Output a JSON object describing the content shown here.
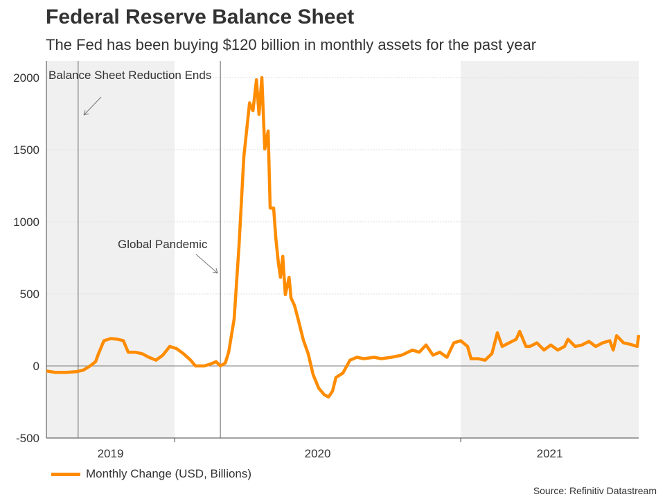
{
  "chart_data": {
    "type": "line",
    "title": "Federal Reserve Balance Sheet",
    "subtitle": "The Fed has been buying $120 billion in monthly assets for the past year",
    "xlabel": "",
    "ylabel": "",
    "xlim": [
      2019.552,
      2021.622
    ],
    "ylim": [
      -500,
      2100
    ],
    "yticks": [
      -500,
      0,
      500,
      1000,
      1500,
      2000
    ],
    "ytick_labels": [
      "-500",
      "0",
      "500",
      "1000",
      "1500",
      "2000"
    ],
    "xtick_labels": [
      {
        "label": "2019",
        "at": 2019.776
      },
      {
        "label": "2020",
        "at": 2020.5
      },
      {
        "label": "2021",
        "at": 2021.311
      }
    ],
    "shaded_periods": [
      [
        2019.552,
        2020.0
      ],
      [
        2021.0,
        2021.622
      ]
    ],
    "grid": true,
    "legend": "bottom-left",
    "color": "#ff8c00",
    "annotations": [
      {
        "text": "Balance Sheet Reduction Ends",
        "x": 2019.663
      },
      {
        "text": "Global Pandemic",
        "x": 2020.16
      }
    ],
    "series": [
      {
        "name": "Monthly Change (USD, Billions)",
        "points": [
          [
            2019.552,
            -35
          ],
          [
            2019.584,
            -45
          ],
          [
            2019.62,
            -45
          ],
          [
            2019.656,
            -40
          ],
          [
            2019.68,
            -30
          ],
          [
            2019.705,
            0
          ],
          [
            2019.724,
            30
          ],
          [
            2019.734,
            85
          ],
          [
            2019.753,
            175
          ],
          [
            2019.777,
            190
          ],
          [
            2019.801,
            185
          ],
          [
            2019.821,
            175
          ],
          [
            2019.838,
            95
          ],
          [
            2019.862,
            95
          ],
          [
            2019.886,
            85
          ],
          [
            2019.91,
            60
          ],
          [
            2019.935,
            40
          ],
          [
            2019.959,
            75
          ],
          [
            2019.983,
            135
          ],
          [
            2020.007,
            120
          ],
          [
            2020.031,
            85
          ],
          [
            2020.056,
            40
          ],
          [
            2020.073,
            0
          ],
          [
            2020.104,
            0
          ],
          [
            2020.128,
            15
          ],
          [
            2020.145,
            30
          ],
          [
            2020.16,
            0
          ],
          [
            2020.177,
            20
          ],
          [
            2020.189,
            95
          ],
          [
            2020.208,
            325
          ],
          [
            2020.225,
            830
          ],
          [
            2020.242,
            1450
          ],
          [
            2020.262,
            1825
          ],
          [
            2020.274,
            1770
          ],
          [
            2020.286,
            1985
          ],
          [
            2020.295,
            1745
          ],
          [
            2020.305,
            2000
          ],
          [
            2020.315,
            1505
          ],
          [
            2020.327,
            1630
          ],
          [
            2020.334,
            1095
          ],
          [
            2020.346,
            1095
          ],
          [
            2020.354,
            880
          ],
          [
            2020.363,
            710
          ],
          [
            2020.37,
            615
          ],
          [
            2020.378,
            760
          ],
          [
            2020.387,
            495
          ],
          [
            2020.4,
            615
          ],
          [
            2020.407,
            470
          ],
          [
            2020.419,
            420
          ],
          [
            2020.431,
            330
          ],
          [
            2020.45,
            180
          ],
          [
            2020.467,
            85
          ],
          [
            2020.484,
            -60
          ],
          [
            2020.504,
            -155
          ],
          [
            2020.523,
            -200
          ],
          [
            2020.538,
            -215
          ],
          [
            2020.552,
            -175
          ],
          [
            2020.564,
            -80
          ],
          [
            2020.588,
            -50
          ],
          [
            2020.613,
            40
          ],
          [
            2020.637,
            60
          ],
          [
            2020.661,
            50
          ],
          [
            2020.697,
            60
          ],
          [
            2020.722,
            50
          ],
          [
            2020.758,
            60
          ],
          [
            2020.794,
            75
          ],
          [
            2020.831,
            110
          ],
          [
            2020.855,
            95
          ],
          [
            2020.879,
            145
          ],
          [
            2020.903,
            75
          ],
          [
            2020.927,
            95
          ],
          [
            2020.952,
            60
          ],
          [
            2020.976,
            160
          ],
          [
            2021.0,
            175
          ],
          [
            2021.024,
            135
          ],
          [
            2021.036,
            50
          ],
          [
            2021.061,
            50
          ],
          [
            2021.085,
            40
          ],
          [
            2021.109,
            85
          ],
          [
            2021.128,
            230
          ],
          [
            2021.145,
            135
          ],
          [
            2021.169,
            160
          ],
          [
            2021.194,
            185
          ],
          [
            2021.206,
            240
          ],
          [
            2021.228,
            135
          ],
          [
            2021.242,
            135
          ],
          [
            2021.266,
            160
          ],
          [
            2021.291,
            110
          ],
          [
            2021.315,
            145
          ],
          [
            2021.339,
            110
          ],
          [
            2021.363,
            135
          ],
          [
            2021.375,
            185
          ],
          [
            2021.4,
            135
          ],
          [
            2021.424,
            145
          ],
          [
            2021.448,
            170
          ],
          [
            2021.472,
            135
          ],
          [
            2021.496,
            160
          ],
          [
            2021.521,
            175
          ],
          [
            2021.533,
            110
          ],
          [
            2021.545,
            210
          ],
          [
            2021.569,
            160
          ],
          [
            2021.593,
            150
          ],
          [
            2021.617,
            135
          ],
          [
            2021.622,
            215
          ]
        ]
      }
    ]
  },
  "source": "Source: Refinitiv Datastream"
}
